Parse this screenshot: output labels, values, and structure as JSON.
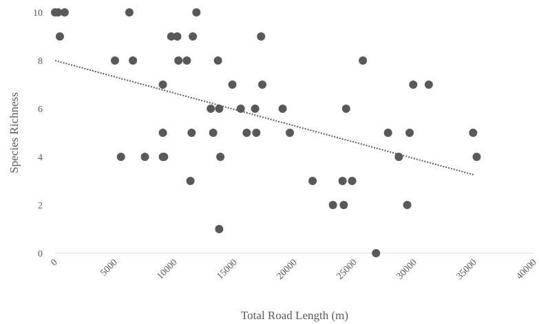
{
  "chart_data": {
    "type": "scatter",
    "title": "",
    "xlabel": "Total Road Length (m)",
    "ylabel": "Species Richness",
    "xlim": [
      0,
      40000
    ],
    "ylim": [
      0,
      10
    ],
    "xticks": [
      "0",
      "5000",
      "10000",
      "15000",
      "20000",
      "25000",
      "30000",
      "35000",
      "40000"
    ],
    "yticks": [
      "0",
      "2",
      "4",
      "6",
      "8",
      "10"
    ],
    "grid": false,
    "legend": "none",
    "marker_color": "#595959",
    "trendline": {
      "style": "dotted",
      "x": [
        0,
        35000
      ],
      "y": [
        8.0,
        3.25
      ]
    },
    "points": [
      {
        "x": 0,
        "y": 10
      },
      {
        "x": 250,
        "y": 10
      },
      {
        "x": 800,
        "y": 10
      },
      {
        "x": 400,
        "y": 9
      },
      {
        "x": 6200,
        "y": 10
      },
      {
        "x": 11800,
        "y": 10
      },
      {
        "x": 9700,
        "y": 9
      },
      {
        "x": 10200,
        "y": 9
      },
      {
        "x": 11500,
        "y": 9
      },
      {
        "x": 17200,
        "y": 9
      },
      {
        "x": 5000,
        "y": 8
      },
      {
        "x": 6500,
        "y": 8
      },
      {
        "x": 10300,
        "y": 8
      },
      {
        "x": 11000,
        "y": 8
      },
      {
        "x": 13600,
        "y": 8
      },
      {
        "x": 25700,
        "y": 8
      },
      {
        "x": 9000,
        "y": 7
      },
      {
        "x": 14800,
        "y": 7
      },
      {
        "x": 17300,
        "y": 7
      },
      {
        "x": 29900,
        "y": 7
      },
      {
        "x": 31200,
        "y": 7
      },
      {
        "x": 13000,
        "y": 6
      },
      {
        "x": 13700,
        "y": 6
      },
      {
        "x": 15500,
        "y": 6
      },
      {
        "x": 16700,
        "y": 6
      },
      {
        "x": 19000,
        "y": 6
      },
      {
        "x": 24300,
        "y": 6
      },
      {
        "x": 9000,
        "y": 5
      },
      {
        "x": 11400,
        "y": 5
      },
      {
        "x": 13200,
        "y": 5
      },
      {
        "x": 16000,
        "y": 5
      },
      {
        "x": 16800,
        "y": 5
      },
      {
        "x": 19600,
        "y": 5
      },
      {
        "x": 27800,
        "y": 5
      },
      {
        "x": 29600,
        "y": 5
      },
      {
        "x": 34900,
        "y": 5
      },
      {
        "x": 5500,
        "y": 4
      },
      {
        "x": 7500,
        "y": 4
      },
      {
        "x": 9000,
        "y": 4
      },
      {
        "x": 9100,
        "y": 4
      },
      {
        "x": 13800,
        "y": 4
      },
      {
        "x": 28700,
        "y": 4
      },
      {
        "x": 35200,
        "y": 4
      },
      {
        "x": 11300,
        "y": 3
      },
      {
        "x": 21500,
        "y": 3
      },
      {
        "x": 24000,
        "y": 3
      },
      {
        "x": 24800,
        "y": 3
      },
      {
        "x": 23200,
        "y": 2
      },
      {
        "x": 24100,
        "y": 2
      },
      {
        "x": 29400,
        "y": 2
      },
      {
        "x": 13700,
        "y": 1
      },
      {
        "x": 26800,
        "y": 0
      }
    ]
  }
}
